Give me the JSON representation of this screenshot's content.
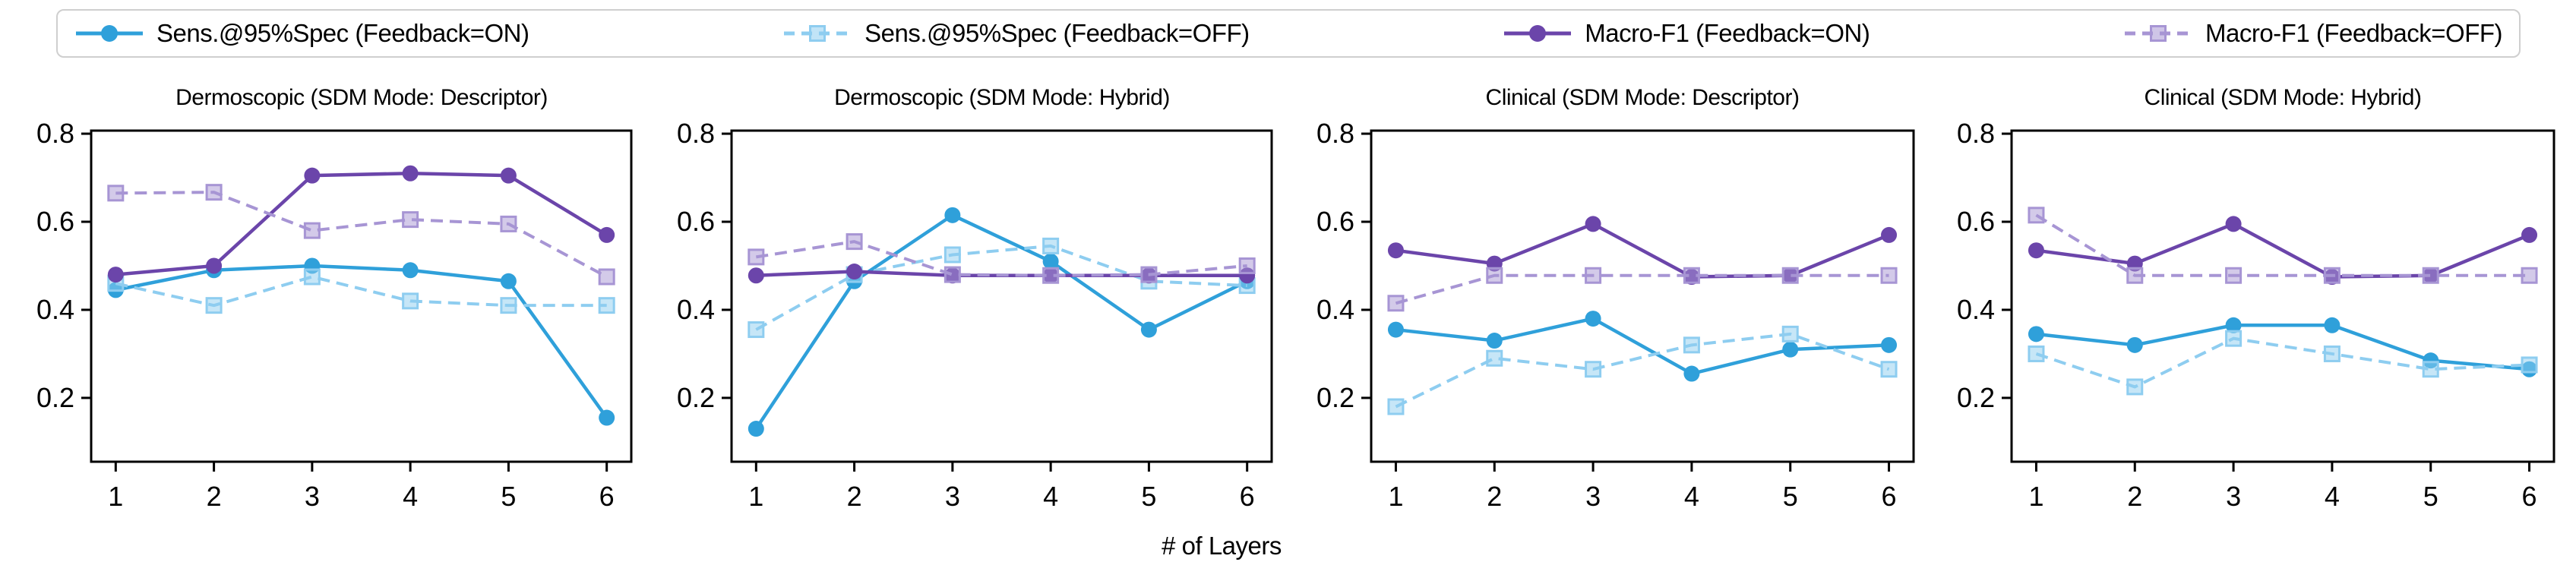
{
  "figure": {
    "xlabel": "# of Layers"
  },
  "legend": {
    "entries": [
      {
        "label": "Sens.@95%Spec (Feedback=ON)",
        "color": "#2fa0da",
        "linestyle": "solid",
        "marker": "circle"
      },
      {
        "label": "Sens.@95%Spec (Feedback=OFF)",
        "color": "#8ecdf0",
        "linestyle": "dashed",
        "marker": "square"
      },
      {
        "label": "Macro-F1 (Feedback=ON)",
        "color": "#6b45aa",
        "linestyle": "solid",
        "marker": "circle"
      },
      {
        "label": "Macro-F1 (Feedback=OFF)",
        "color": "#a795d4",
        "linestyle": "dashed",
        "marker": "square"
      }
    ]
  },
  "chart_data": [
    {
      "type": "line",
      "title": "Dermoscopic (SDM Mode: Descriptor)",
      "x": [
        1,
        2,
        3,
        4,
        5,
        6
      ],
      "yticks": [
        0.2,
        0.4,
        0.6,
        0.8
      ],
      "ylim": [
        0.055,
        0.807
      ],
      "grid": false,
      "series": [
        {
          "name": "Sens.@95%Spec (Feedback=ON)",
          "values": [
            0.445,
            0.49,
            0.5,
            0.49,
            0.465,
            0.155
          ]
        },
        {
          "name": "Sens.@95%Spec (Feedback=OFF)",
          "values": [
            0.46,
            0.41,
            0.475,
            0.42,
            0.41,
            0.41
          ]
        },
        {
          "name": "Macro-F1 (Feedback=ON)",
          "values": [
            0.48,
            0.5,
            0.705,
            0.71,
            0.705,
            0.57
          ]
        },
        {
          "name": "Macro-F1 (Feedback=OFF)",
          "values": [
            0.665,
            0.667,
            0.58,
            0.605,
            0.595,
            0.475
          ]
        }
      ]
    },
    {
      "type": "line",
      "title": "Dermoscopic (SDM Mode: Hybrid)",
      "x": [
        1,
        2,
        3,
        4,
        5,
        6
      ],
      "yticks": [
        0.2,
        0.4,
        0.6,
        0.8
      ],
      "ylim": [
        0.055,
        0.807
      ],
      "grid": false,
      "series": [
        {
          "name": "Sens.@95%Spec (Feedback=ON)",
          "values": [
            0.13,
            0.465,
            0.615,
            0.51,
            0.355,
            0.465
          ]
        },
        {
          "name": "Sens.@95%Spec (Feedback=OFF)",
          "values": [
            0.355,
            0.48,
            0.525,
            0.545,
            0.465,
            0.455
          ]
        },
        {
          "name": "Macro-F1 (Feedback=ON)",
          "values": [
            0.478,
            0.487,
            0.478,
            0.478,
            0.478,
            0.478
          ]
        },
        {
          "name": "Macro-F1 (Feedback=OFF)",
          "values": [
            0.52,
            0.555,
            0.48,
            0.478,
            0.48,
            0.5
          ]
        }
      ]
    },
    {
      "type": "line",
      "title": "Clinical (SDM Mode: Descriptor)",
      "x": [
        1,
        2,
        3,
        4,
        5,
        6
      ],
      "yticks": [
        0.2,
        0.4,
        0.6,
        0.8
      ],
      "ylim": [
        0.055,
        0.807
      ],
      "grid": false,
      "series": [
        {
          "name": "Sens.@95%Spec (Feedback=ON)",
          "values": [
            0.355,
            0.33,
            0.38,
            0.255,
            0.31,
            0.32
          ]
        },
        {
          "name": "Sens.@95%Spec (Feedback=OFF)",
          "values": [
            0.18,
            0.29,
            0.265,
            0.32,
            0.345,
            0.265
          ]
        },
        {
          "name": "Macro-F1 (Feedback=ON)",
          "values": [
            0.535,
            0.505,
            0.595,
            0.475,
            0.478,
            0.57
          ]
        },
        {
          "name": "Macro-F1 (Feedback=OFF)",
          "values": [
            0.415,
            0.478,
            0.478,
            0.478,
            0.478,
            0.478
          ]
        }
      ]
    },
    {
      "type": "line",
      "title": "Clinical (SDM Mode: Hybrid)",
      "x": [
        1,
        2,
        3,
        4,
        5,
        6
      ],
      "yticks": [
        0.2,
        0.4,
        0.6,
        0.8
      ],
      "ylim": [
        0.055,
        0.807
      ],
      "grid": false,
      "series": [
        {
          "name": "Sens.@95%Spec (Feedback=ON)",
          "values": [
            0.345,
            0.32,
            0.365,
            0.365,
            0.285,
            0.265
          ]
        },
        {
          "name": "Sens.@95%Spec (Feedback=OFF)",
          "values": [
            0.3,
            0.225,
            0.335,
            0.3,
            0.265,
            0.275
          ]
        },
        {
          "name": "Macro-F1 (Feedback=ON)",
          "values": [
            0.535,
            0.505,
            0.595,
            0.475,
            0.478,
            0.57
          ]
        },
        {
          "name": "Macro-F1 (Feedback=OFF)",
          "values": [
            0.615,
            0.478,
            0.478,
            0.478,
            0.478,
            0.478
          ]
        }
      ]
    }
  ]
}
